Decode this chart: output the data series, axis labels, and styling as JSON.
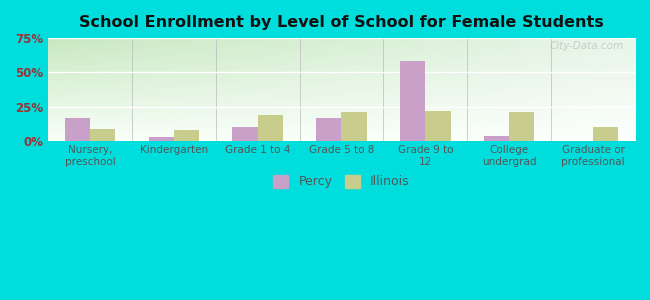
{
  "title": "School Enrollment by Level of School for Female Students",
  "categories": [
    "Nursery,\npreschool",
    "Kindergarten",
    "Grade 1 to 4",
    "Grade 5 to 8",
    "Grade 9 to\n12",
    "College\nundergrad",
    "Graduate or\nprofessional"
  ],
  "percy": [
    17,
    3,
    10,
    17,
    58,
    4,
    0
  ],
  "illinois": [
    9,
    8,
    19,
    21,
    22,
    21,
    10
  ],
  "percy_color": "#C8A0C8",
  "illinois_color": "#C8CC8C",
  "bg_color": "#00DDDD",
  "plot_bg_topleft": "#c8e8c0",
  "plot_bg_topright": "#e8f0e8",
  "plot_bg_bottomleft": "#e8f5e0",
  "plot_bg_bottomright": "#f8fff8",
  "title_color": "#111111",
  "axis_label_color": "#555555",
  "tick_color": "#993333",
  "legend_labels": [
    "Percy",
    "Illinois"
  ],
  "ylim": [
    0,
    75
  ],
  "yticks": [
    0,
    25,
    50,
    75
  ],
  "ytick_labels": [
    "0%",
    "25%",
    "50%",
    "75%"
  ],
  "bar_width": 0.3,
  "watermark": "City-Data.com"
}
